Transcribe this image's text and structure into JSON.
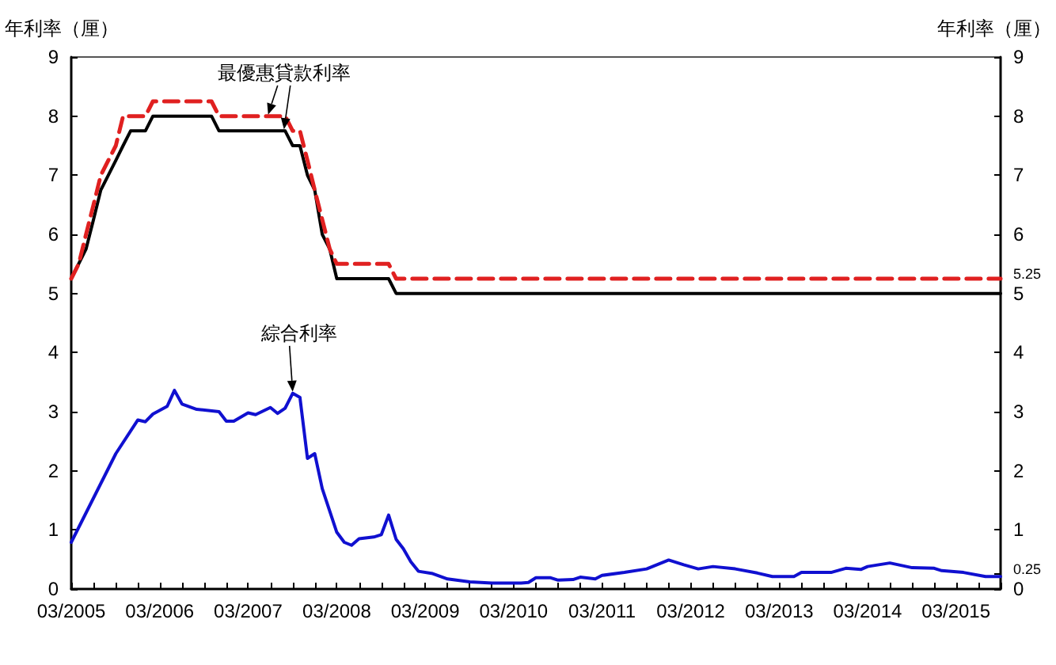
{
  "chart_data": {
    "type": "line",
    "ylabel": "年利率（厘）",
    "y2label": "年利率（厘）",
    "xlim": [
      "2005-03",
      "2015-09"
    ],
    "xticks": [
      {
        "value": "2005-03",
        "label": "03/2005"
      },
      {
        "value": "2005-06",
        "label": null
      },
      {
        "value": "2005-09",
        "label": null
      },
      {
        "value": "2005-12",
        "label": null
      },
      {
        "value": "2006-03",
        "label": "03/2006"
      },
      {
        "value": "2006-06",
        "label": null
      },
      {
        "value": "2006-09",
        "label": null
      },
      {
        "value": "2006-12",
        "label": null
      },
      {
        "value": "2007-03",
        "label": "03/2007"
      },
      {
        "value": "2007-06",
        "label": null
      },
      {
        "value": "2007-09",
        "label": null
      },
      {
        "value": "2007-12",
        "label": null
      },
      {
        "value": "2008-03",
        "label": "03/2008"
      },
      {
        "value": "2008-06",
        "label": null
      },
      {
        "value": "2008-09",
        "label": null
      },
      {
        "value": "2008-12",
        "label": null
      },
      {
        "value": "2009-03",
        "label": "03/2009"
      },
      {
        "value": "2009-06",
        "label": null
      },
      {
        "value": "2009-09",
        "label": null
      },
      {
        "value": "2009-12",
        "label": null
      },
      {
        "value": "2010-03",
        "label": "03/2010"
      },
      {
        "value": "2010-06",
        "label": null
      },
      {
        "value": "2010-09",
        "label": null
      },
      {
        "value": "2010-12",
        "label": null
      },
      {
        "value": "2011-03",
        "label": "03/2011"
      },
      {
        "value": "2011-06",
        "label": null
      },
      {
        "value": "2011-09",
        "label": null
      },
      {
        "value": "2011-12",
        "label": null
      },
      {
        "value": "2012-03",
        "label": "03/2012"
      },
      {
        "value": "2012-06",
        "label": null
      },
      {
        "value": "2012-09",
        "label": null
      },
      {
        "value": "2012-12",
        "label": null
      },
      {
        "value": "2013-03",
        "label": "03/2013"
      },
      {
        "value": "2013-06",
        "label": null
      },
      {
        "value": "2013-09",
        "label": null
      },
      {
        "value": "2013-12",
        "label": null
      },
      {
        "value": "2014-03",
        "label": "03/2014"
      },
      {
        "value": "2014-06",
        "label": null
      },
      {
        "value": "2014-09",
        "label": null
      },
      {
        "value": "2014-12",
        "label": null
      },
      {
        "value": "2015-03",
        "label": "03/2015"
      },
      {
        "value": "2015-06",
        "label": null
      },
      {
        "value": "2015-09",
        "label": null
      }
    ],
    "ylim": [
      0,
      9
    ],
    "yticks": [
      0,
      1,
      2,
      3,
      4,
      5,
      6,
      7,
      8,
      9
    ],
    "y2lim": [
      0,
      9
    ],
    "y2ticks": [
      0,
      0.25,
      1,
      2,
      3,
      4,
      5,
      5.25,
      6,
      7,
      8,
      9
    ],
    "grid": false,
    "marker": "none",
    "series": [
      {
        "color": "#000000",
        "line_style": "solid",
        "x": [
          "2005-03",
          "2005-05",
          "2005-06",
          "2005-07",
          "2005-08",
          "2005-09",
          "2005-10",
          "2005-11",
          "2006-01",
          "2006-02",
          "2006-10",
          "2006-11",
          "2007-08",
          "2007-09",
          "2007-10",
          "2007-11",
          "2007-12",
          "2008-01",
          "2008-02",
          "2008-03",
          "2008-10",
          "2008-11",
          "2015-09"
        ],
        "values": [
          5.25,
          5.75,
          6.25,
          6.75,
          7.0,
          7.25,
          7.5,
          7.75,
          7.75,
          8.0,
          8.0,
          7.75,
          7.75,
          7.5,
          7.5,
          7.0,
          6.75,
          6.0,
          5.75,
          5.25,
          5.25,
          5.0,
          5.0
        ]
      },
      {
        "color": "#e02020",
        "line_style": "dashed",
        "x": [
          "2005-03",
          "2005-04",
          "2005-05",
          "2005-06",
          "2005-07",
          "2005-08",
          "2005-09",
          "2005-10",
          "2006-01",
          "2006-02",
          "2006-10",
          "2006-11",
          "2007-08",
          "2007-09",
          "2007-10",
          "2007-11",
          "2007-12",
          "2008-01",
          "2008-02",
          "2008-03",
          "2008-10",
          "2008-11",
          "2015-09"
        ],
        "values": [
          5.25,
          5.5,
          6.0,
          6.5,
          7.0,
          7.25,
          7.5,
          8.0,
          8.0,
          8.25,
          8.25,
          8.0,
          8.0,
          7.75,
          7.75,
          7.25,
          6.75,
          6.25,
          5.75,
          5.5,
          5.5,
          5.25,
          5.25
        ]
      },
      {
        "color": "#1010d0",
        "line_style": "solid",
        "x": [
          "2005-03",
          "2005-09",
          "2005-12",
          "2006-01",
          "2006-02",
          "2006-04",
          "2006-05",
          "2006-06",
          "2006-08",
          "2006-11",
          "2006-12",
          "2007-01",
          "2007-03",
          "2007-04",
          "2007-06",
          "2007-07",
          "2007-08",
          "2007-09",
          "2007-10",
          "2007-11",
          "2007-12",
          "2008-01",
          "2008-03",
          "2008-04",
          "2008-05",
          "2008-06",
          "2008-08",
          "2008-09",
          "2008-10",
          "2008-11",
          "2008-12",
          "2009-01",
          "2009-02",
          "2009-04",
          "2009-06",
          "2009-09",
          "2009-12",
          "2010-04",
          "2010-05",
          "2010-06",
          "2010-08",
          "2010-09",
          "2010-11",
          "2010-12",
          "2011-02",
          "2011-03",
          "2011-06",
          "2011-09",
          "2011-12",
          "2012-02",
          "2012-04",
          "2012-06",
          "2012-09",
          "2012-12",
          "2013-02",
          "2013-05",
          "2013-06",
          "2013-10",
          "2013-12",
          "2014-02",
          "2014-03",
          "2014-06",
          "2014-09",
          "2014-12",
          "2015-01",
          "2015-04",
          "2015-07",
          "2015-09"
        ],
        "values": [
          0.79,
          2.29,
          2.86,
          2.83,
          2.96,
          3.09,
          3.36,
          3.13,
          3.04,
          3.0,
          2.84,
          2.84,
          2.98,
          2.95,
          3.07,
          2.97,
          3.06,
          3.31,
          3.24,
          2.21,
          2.29,
          1.7,
          0.96,
          0.79,
          0.74,
          0.85,
          0.88,
          0.92,
          1.25,
          0.84,
          0.68,
          0.46,
          0.3,
          0.26,
          0.17,
          0.12,
          0.1,
          0.1,
          0.11,
          0.19,
          0.19,
          0.15,
          0.16,
          0.2,
          0.17,
          0.23,
          0.28,
          0.34,
          0.49,
          0.41,
          0.34,
          0.38,
          0.34,
          0.27,
          0.21,
          0.21,
          0.28,
          0.28,
          0.35,
          0.33,
          0.38,
          0.44,
          0.36,
          0.35,
          0.31,
          0.28,
          0.21,
          0.21
        ]
      }
    ],
    "annotations": [
      {
        "text": "最優惠貸款利率",
        "x": "2007-07",
        "y": 8.0
      },
      {
        "text": "綜合利率",
        "x": "2007-09",
        "y": 3.31
      }
    ]
  }
}
